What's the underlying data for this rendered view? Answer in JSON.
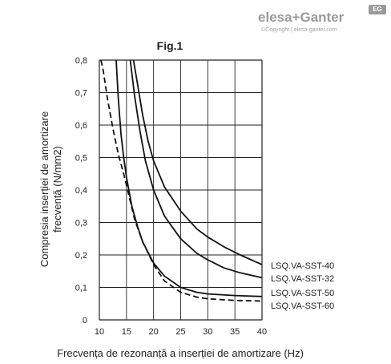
{
  "brand": {
    "logo_text": "elesa+Ganter",
    "badge": "EG",
    "copyright": "©Copyright | elesa-ganter.com"
  },
  "chart_data": {
    "type": "line",
    "title": "Fig.1",
    "xlabel": "Frecvența de rezonanță a inserției de amortizare (Hz)",
    "ylabel_lines": [
      "Compresia inserției de amortizare",
      "frecvență (N/mm2)"
    ],
    "xlim": [
      10,
      40
    ],
    "ylim": [
      0,
      0.8
    ],
    "x_ticks": [
      10,
      15,
      20,
      25,
      30,
      35,
      40
    ],
    "y_ticks": [
      0,
      0.1,
      0.2,
      0.3,
      0.4,
      0.5,
      0.6,
      0.7,
      0.8
    ],
    "x_tick_labels": [
      "10",
      "15",
      "20",
      "25",
      "30",
      "35",
      "40"
    ],
    "y_tick_labels": [
      "0",
      "0,1",
      "0,2",
      "0,3",
      "0,4",
      "0,5",
      "0,6",
      "0,7",
      "0,8"
    ],
    "grid": true,
    "series": [
      {
        "name": "LSQ.VA-SST-40",
        "style": "solid",
        "x": [
          16.3,
          17,
          18,
          19,
          20,
          22,
          25,
          28,
          30,
          33,
          36,
          40
        ],
        "y": [
          0.8,
          0.73,
          0.63,
          0.55,
          0.49,
          0.41,
          0.335,
          0.28,
          0.255,
          0.225,
          0.2,
          0.17
        ]
      },
      {
        "name": "LSQ.VA-SST-32",
        "style": "solid",
        "x": [
          15.7,
          16.5,
          17.5,
          18.5,
          20,
          22,
          25,
          28,
          30,
          33,
          36,
          40
        ],
        "y": [
          0.8,
          0.69,
          0.58,
          0.49,
          0.4,
          0.32,
          0.25,
          0.205,
          0.185,
          0.16,
          0.145,
          0.13
        ]
      },
      {
        "name": "LSQ.VA-SST-50",
        "style": "solid",
        "x": [
          13.1,
          13.5,
          14,
          14.5,
          15,
          16,
          17,
          18,
          20,
          22,
          25,
          28,
          30,
          35,
          40
        ],
        "y": [
          0.8,
          0.68,
          0.57,
          0.5,
          0.44,
          0.35,
          0.29,
          0.24,
          0.175,
          0.135,
          0.1,
          0.085,
          0.08,
          0.075,
          0.072
        ]
      },
      {
        "name": "LSQ.VA-SST-60",
        "style": "dashed",
        "x": [
          10.3,
          10.7,
          11.5,
          12.5,
          13.5,
          14.5,
          15.5,
          16.5,
          18,
          20,
          22,
          25,
          28,
          30,
          35,
          40
        ],
        "y": [
          0.8,
          0.77,
          0.68,
          0.59,
          0.51,
          0.45,
          0.38,
          0.31,
          0.24,
          0.17,
          0.12,
          0.085,
          0.07,
          0.065,
          0.06,
          0.058
        ]
      }
    ],
    "legend_placement": "right, stacked labels beside curve ends"
  }
}
